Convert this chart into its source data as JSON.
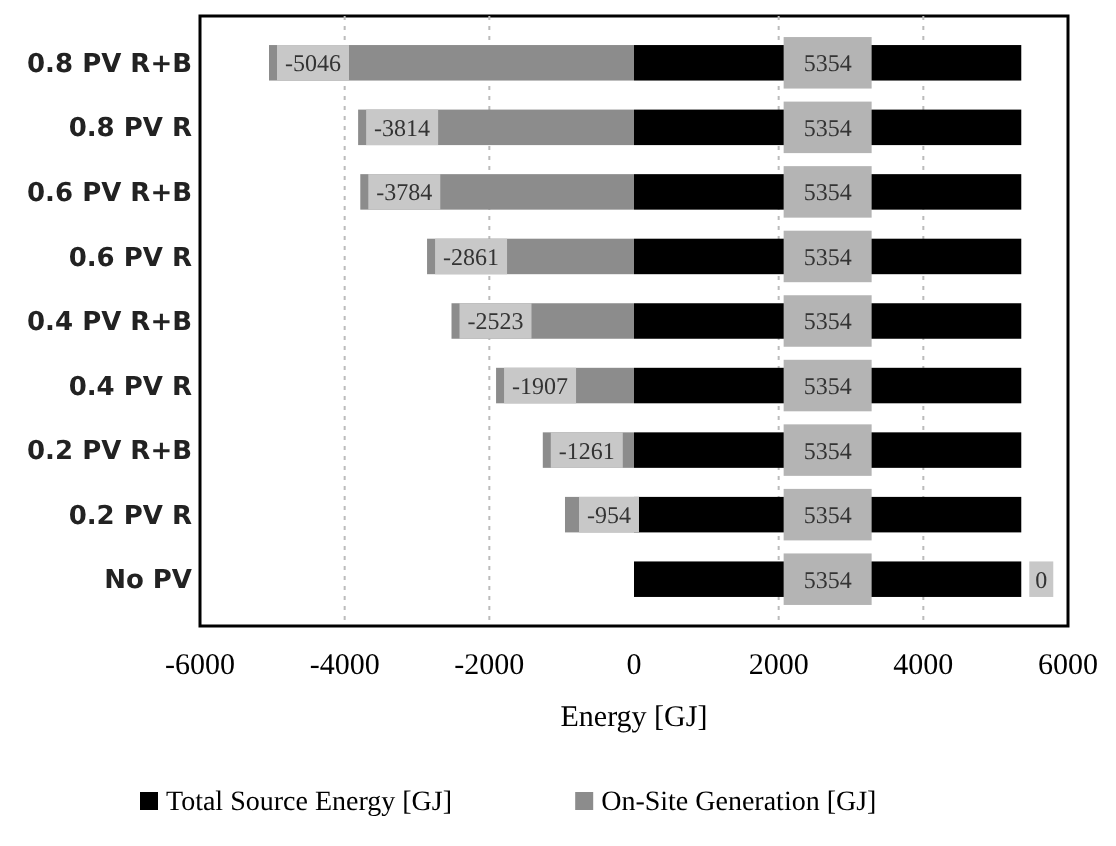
{
  "chart_data": {
    "type": "bar",
    "orientation": "horizontal",
    "stacked": true,
    "xlabel": "Energy [GJ]",
    "categories": [
      "0.8 PV R+B",
      "0.8 PV R",
      "0.6 PV R+B",
      "0.6 PV R",
      "0.4 PV R+B",
      "0.4 PV R",
      "0.2 PV R+B",
      "0.2 PV R",
      "No PV"
    ],
    "series": [
      {
        "name": "Total Source Energy [GJ]",
        "color": "#000000",
        "values": [
          5354,
          5354,
          5354,
          5354,
          5354,
          5354,
          5354,
          5354,
          5354
        ]
      },
      {
        "name": "On-Site Generation [GJ]",
        "color": "#8c8c8c",
        "values": [
          -5046,
          -3814,
          -3784,
          -2861,
          -2523,
          -1907,
          -1261,
          -954,
          0
        ]
      }
    ],
    "xlim": [
      -6000,
      6000
    ],
    "xticks": [
      -6000,
      -4000,
      -2000,
      0,
      2000,
      4000,
      6000
    ],
    "grid": "x",
    "legend": "bottom",
    "data_labels": true
  }
}
